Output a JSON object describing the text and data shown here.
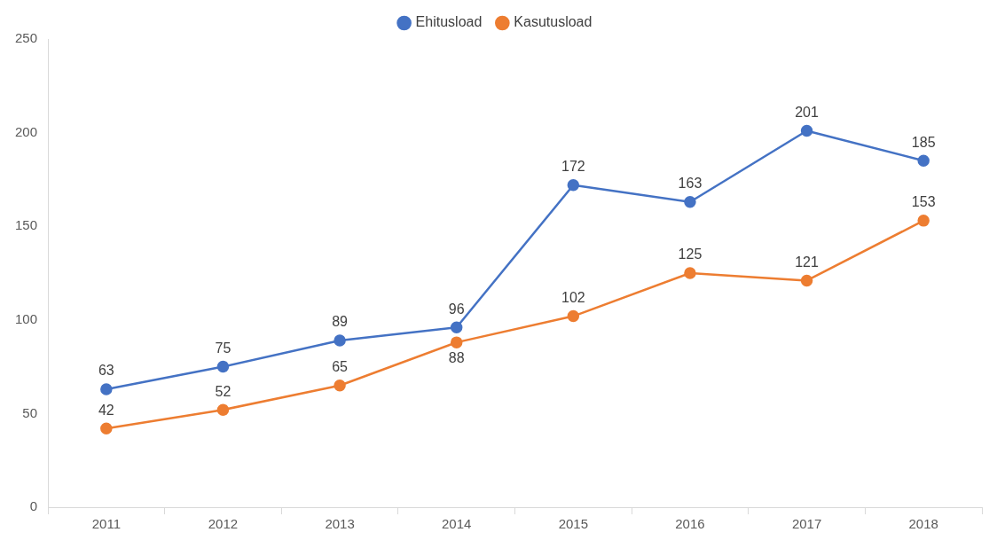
{
  "chart_data": {
    "type": "line",
    "categories": [
      "2011",
      "2012",
      "2013",
      "2014",
      "2015",
      "2016",
      "2017",
      "2018"
    ],
    "series": [
      {
        "name": "Ehitusload",
        "color": "#4472c4",
        "values": [
          63,
          75,
          89,
          96,
          172,
          163,
          201,
          185
        ]
      },
      {
        "name": "Kasutusload",
        "color": "#ed7d31",
        "values": [
          42,
          52,
          65,
          88,
          102,
          125,
          121,
          153
        ]
      }
    ],
    "ylim": [
      0,
      250
    ],
    "yticks": [
      0,
      50,
      100,
      150,
      200,
      250
    ],
    "grid": false,
    "legend": "top",
    "marker": "circle",
    "data_labels": true
  }
}
